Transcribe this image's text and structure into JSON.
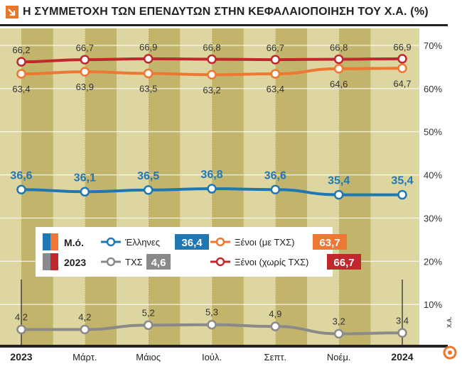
{
  "title": "Η ΣΥΜΜΕΤΟΧΗ ΤΩΝ ΕΠΕΝΔΥΤΩΝ ΣΤΗΝ ΚΕΦΑΛΑΙΟΠΟΙΗΣΗ ΤΟΥ Χ.Α. (%)",
  "source_mark": "Χ.Α.",
  "colors": {
    "greeks": "#1f77b4",
    "foreign_with_tax": "#ee7733",
    "tax_agents": "#8a8a8a",
    "foreign_without_tax": "#c0282d",
    "band_light": "#ded6a1",
    "band_dark": "#c2b46a"
  },
  "legend": {
    "avg_label": "Μ.ό.",
    "year_label": "2023",
    "items": [
      {
        "key": "greeks",
        "label": "Έλληνες",
        "value": "36,4"
      },
      {
        "key": "foreign_with_tax",
        "label": "Ξένοι (με ΤΧΣ)",
        "value": "63,7"
      },
      {
        "key": "tax_agents",
        "label": "ΤΧΣ",
        "value": "4,6"
      },
      {
        "key": "foreign_without_tax",
        "label": "Ξένοι (χωρίς ΤΧΣ)",
        "value": "66,7"
      }
    ]
  },
  "chart_data": {
    "type": "line",
    "x": [
      "2023",
      "Μάρτ.",
      "Μάιος",
      "Ιούλ.",
      "Σεπτ.",
      "Νοέμ.",
      "2024"
    ],
    "ylim": [
      0,
      70
    ],
    "yticks": [
      10,
      20,
      30,
      40,
      50,
      60,
      70
    ],
    "ytick_labels": [
      "10%",
      "20%",
      "30%",
      "40%",
      "50%",
      "60%",
      "70%"
    ],
    "grid": true,
    "series": [
      {
        "name": "Ξένοι (χωρίς ΤΧΣ)",
        "key": "foreign_without_tax",
        "values": [
          66.2,
          66.7,
          66.9,
          66.8,
          66.7,
          66.8,
          66.9
        ],
        "labels": [
          "66,2",
          "66,7",
          "66,9",
          "66,8",
          "66,7",
          "66,8",
          "66,9"
        ]
      },
      {
        "name": "Ξένοι (με ΤΧΣ)",
        "key": "foreign_with_tax",
        "values": [
          63.4,
          63.9,
          63.5,
          63.2,
          63.4,
          64.6,
          64.7
        ],
        "labels": [
          "63,4",
          "63,9",
          "63,5",
          "63,2",
          "63,4",
          "64,6",
          "64,7"
        ]
      },
      {
        "name": "Έλληνες",
        "key": "greeks",
        "values": [
          36.6,
          36.1,
          36.5,
          36.8,
          36.6,
          35.4,
          35.4
        ],
        "labels": [
          "36,6",
          "36,1",
          "36,5",
          "36,8",
          "36,6",
          "35,4",
          "35,4"
        ]
      },
      {
        "name": "ΤΧΣ",
        "key": "tax_agents",
        "values": [
          4.2,
          4.2,
          5.2,
          5.3,
          4.9,
          3.2,
          3.4
        ],
        "labels": [
          "4,2",
          "4,2",
          "5,2",
          "5,3",
          "4,9",
          "3,2",
          "3,4"
        ]
      }
    ]
  }
}
